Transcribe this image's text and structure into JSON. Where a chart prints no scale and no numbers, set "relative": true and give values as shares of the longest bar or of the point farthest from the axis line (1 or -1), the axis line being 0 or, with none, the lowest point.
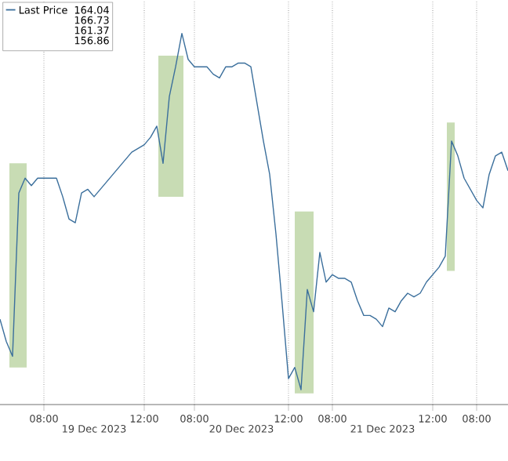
{
  "chart_data": {
    "type": "line",
    "relative": true,
    "grid": true,
    "legend": "top left",
    "marker": "none",
    "line_style": "solid",
    "categories": [
      null,
      null,
      null,
      null,
      null,
      null,
      null,
      "08:00",
      null,
      null,
      null,
      null,
      null,
      null,
      null,
      null,
      null,
      null,
      null,
      null,
      null,
      null,
      null,
      "12:00",
      null,
      null,
      null,
      null,
      null,
      null,
      null,
      "08:00",
      null,
      null,
      null,
      null,
      null,
      null,
      null,
      null,
      null,
      null,
      null,
      null,
      null,
      null,
      "12:00",
      null,
      null,
      null,
      null,
      null,
      null,
      "08:00",
      null,
      null,
      null,
      null,
      null,
      null,
      null,
      null,
      null,
      null,
      null,
      null,
      null,
      null,
      null,
      "12:00",
      null,
      null,
      null,
      null,
      null,
      null,
      "08:00",
      null,
      null,
      null,
      null,
      null
    ],
    "annotations": [
      "164.04",
      "166.73",
      "161.37",
      "156.86",
      "19 Dec 2023",
      "20 Dec 2023",
      "21 Dec 2023"
    ],
    "series": [
      {
        "name": "Last Price",
        "color": "#3b6f9c",
        "values": [
          0.23,
          0.17,
          0.13,
          0.57,
          0.61,
          0.59,
          0.61,
          0.61,
          0.61,
          0.61,
          0.56,
          0.5,
          0.49,
          0.57,
          0.58,
          0.56,
          0.58,
          0.6,
          0.62,
          0.64,
          0.66,
          0.68,
          0.69,
          0.7,
          0.72,
          0.75,
          0.65,
          0.83,
          0.91,
          1,
          0.93,
          0.91,
          0.91,
          0.91,
          0.89,
          0.88,
          0.91,
          0.91,
          0.92,
          0.92,
          0.91,
          0.81,
          0.71,
          0.62,
          0.46,
          0.27,
          0.07,
          0.1,
          0.04,
          0.31,
          0.25,
          0.41,
          0.33,
          0.35,
          0.34,
          0.34,
          0.33,
          0.28,
          0.24,
          0.24,
          0.23,
          0.21,
          0.26,
          0.25,
          0.28,
          0.3,
          0.29,
          0.3,
          0.33,
          0.35,
          0.37,
          0.4,
          0.71,
          0.67,
          0.61,
          0.58,
          0.55,
          0.53,
          0.62,
          0.67,
          0.68,
          0.63
        ]
      }
    ]
  }
}
